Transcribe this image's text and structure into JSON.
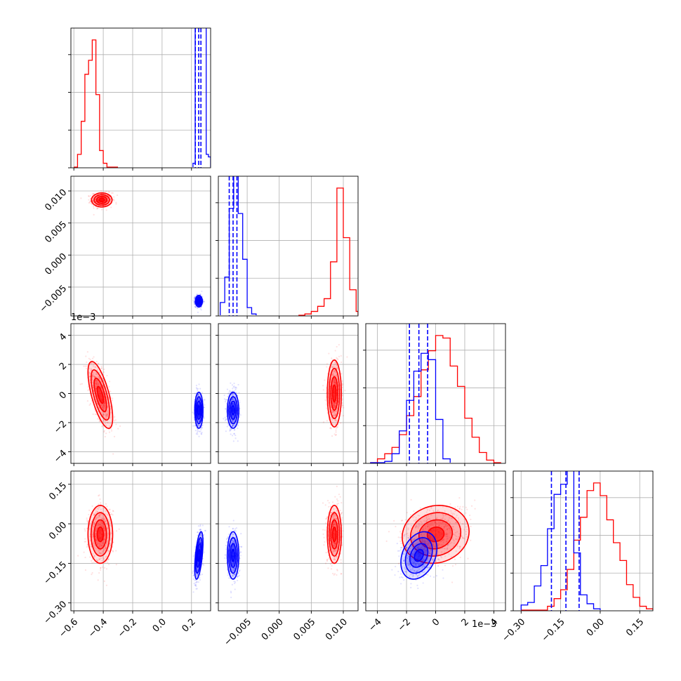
{
  "chart_data": {
    "type": "corner",
    "colors": {
      "red": "#ff0000",
      "blue": "#0000ff",
      "grid": "#b0b0b0"
    },
    "grid": true,
    "parameters": [
      {
        "index": 0,
        "range": [
          -0.62,
          0.33
        ],
        "ticks": [
          -0.6,
          -0.4,
          -0.2,
          0.0,
          0.2
        ],
        "tick_labels": [
          "−0.6",
          "−0.4",
          "−0.2",
          "0.0",
          "0.2"
        ],
        "offset_label": ""
      },
      {
        "index": 1,
        "range": [
          -0.0095,
          0.0123
        ],
        "ticks": [
          -0.005,
          0.0,
          0.005,
          0.01
        ],
        "tick_labels": [
          "−0.005",
          "0.000",
          "0.005",
          "0.010"
        ],
        "offset_label": ""
      },
      {
        "index": 2,
        "range": [
          -4.8,
          4.8
        ],
        "ticks": [
          -4,
          -2,
          0,
          2,
          4
        ],
        "tick_labels": [
          "−4",
          "−2",
          "0",
          "2",
          "4"
        ],
        "offset_label": "1e−3"
      },
      {
        "index": 3,
        "range": [
          -0.33,
          0.2
        ],
        "ticks": [
          -0.3,
          -0.15,
          0.0,
          0.15
        ],
        "tick_labels": [
          "−0.30",
          "−0.15",
          "0.00",
          "0.15"
        ],
        "offset_label": ""
      }
    ],
    "histograms": [
      {
        "param": 0,
        "red": {
          "edges": [
            -0.6,
            -0.575,
            -0.55,
            -0.525,
            -0.5,
            -0.475,
            -0.45,
            -0.425,
            -0.4,
            -0.375,
            -0.35,
            -0.325,
            -0.3
          ],
          "counts": [
            0,
            0.1,
            0.36,
            0.73,
            0.84,
            1.0,
            0.57,
            0.13,
            0.03,
            0,
            0,
            0
          ]
        },
        "blue": {
          "edges": [
            0.21,
            0.225,
            0.24,
            0.255,
            0.27,
            0.285,
            0.3,
            0.315,
            0.33
          ],
          "counts": [
            0.03,
            1.12,
            1.12,
            1.12,
            1.12,
            1.12,
            0.1,
            0.08
          ]
        },
        "quantiles": [
          0.226,
          0.249,
          0.264
        ]
      },
      {
        "param": 1,
        "red": {
          "edges": [
            0.003,
            0.004,
            0.005,
            0.006,
            0.007,
            0.008,
            0.009,
            0.01,
            0.011,
            0.012,
            0.0123
          ],
          "counts": [
            0.0,
            0.01,
            0.03,
            0.07,
            0.13,
            0.42,
            1.0,
            0.61,
            0.2,
            0.03
          ]
        },
        "blue": {
          "edges": [
            -0.0092,
            -0.0085,
            -0.0078,
            -0.0071,
            -0.0064,
            -0.0057,
            -0.005,
            -0.0043,
            -0.0036
          ],
          "counts": [
            0.1,
            0.3,
            0.84,
            1.1,
            0.8,
            0.44,
            0.06,
            0.01
          ]
        },
        "quantiles": [
          -0.0078,
          -0.0072,
          -0.0066
        ]
      },
      {
        "param": 2,
        "red": {
          "edges": [
            -4.5,
            -4.0,
            -3.5,
            -3.0,
            -2.5,
            -2.0,
            -1.5,
            -1.0,
            -0.5,
            0.0,
            0.5,
            1.0,
            1.5,
            2.0,
            2.5,
            3.0,
            3.5,
            4.0,
            4.5
          ],
          "counts": [
            0.0,
            0.03,
            0.07,
            0.12,
            0.22,
            0.37,
            0.52,
            0.73,
            0.88,
            1.0,
            0.98,
            0.76,
            0.6,
            0.35,
            0.2,
            0.08,
            0.02,
            0.0
          ]
        },
        "blue": {
          "edges": [
            -4.5,
            -4.0,
            -3.5,
            -3.0,
            -2.5,
            -2.0,
            -1.5,
            -1.0,
            -0.5,
            0.0,
            0.5,
            1.0
          ],
          "counts": [
            0.0,
            0.0,
            0.01,
            0.07,
            0.25,
            0.49,
            0.72,
            0.86,
            0.81,
            0.34,
            0.03
          ]
        },
        "quantiles": [
          -1.8,
          -1.15,
          -0.55
        ]
      },
      {
        "param": 3,
        "red": {
          "edges": [
            -0.3,
            -0.275,
            -0.25,
            -0.225,
            -0.2,
            -0.175,
            -0.15,
            -0.125,
            -0.1,
            -0.075,
            -0.05,
            -0.025,
            0.0,
            0.025,
            0.05,
            0.075,
            0.1,
            0.125,
            0.15,
            0.175,
            0.2
          ],
          "counts": [
            0.0,
            0.0,
            0.0,
            0.0,
            0.03,
            0.09,
            0.16,
            0.32,
            0.55,
            0.73,
            0.94,
            1.0,
            0.9,
            0.71,
            0.53,
            0.39,
            0.2,
            0.1,
            0.03,
            0.01
          ]
        },
        "blue": {
          "edges": [
            -0.3,
            -0.275,
            -0.25,
            -0.225,
            -0.2,
            -0.175,
            -0.15,
            -0.125,
            -0.1,
            -0.075,
            -0.05,
            -0.025,
            0.0
          ],
          "counts": [
            0.04,
            0.06,
            0.19,
            0.35,
            0.64,
            0.91,
            0.99,
            1.1,
            0.45,
            0.12,
            0.05,
            0.01
          ]
        },
        "quantiles": [
          -0.185,
          -0.13,
          -0.08
        ]
      }
    ],
    "pairs": [
      {
        "x": 1,
        "y": 0,
        "red": {
          "cx": -0.41,
          "cy": 0.0086,
          "sx": 0.035,
          "sy": 0.00055,
          "rho": 0.0
        },
        "blue": {
          "cx": 0.25,
          "cy": -0.0072,
          "sx": 0.012,
          "sy": 0.00045,
          "rho": 0.0
        }
      },
      {
        "x": 2,
        "y": 0,
        "red": {
          "cx": -0.42,
          "cy": -0.1,
          "sx": 0.042,
          "sy": 1.15,
          "rho": -0.68
        },
        "blue": {
          "cx": 0.25,
          "cy": -1.15,
          "sx": 0.014,
          "sy": 0.62,
          "rho": 0.0
        }
      },
      {
        "x": 2,
        "y": 1,
        "red": {
          "cx": 0.0086,
          "cy": 0.0,
          "sx": 0.00055,
          "sy": 1.15,
          "rho": 0.0
        },
        "blue": {
          "cx": -0.0072,
          "cy": -1.15,
          "sx": 0.00045,
          "sy": 0.62,
          "rho": 0.0
        }
      },
      {
        "x": 3,
        "y": 0,
        "red": {
          "cx": -0.42,
          "cy": -0.04,
          "sx": 0.042,
          "sy": 0.055,
          "rho": 0.0
        },
        "blue": {
          "cx": 0.25,
          "cy": -0.12,
          "sx": 0.014,
          "sy": 0.045,
          "rho": 0.55
        }
      },
      {
        "x": 3,
        "y": 1,
        "red": {
          "cx": 0.0086,
          "cy": -0.04,
          "sx": 0.00055,
          "sy": 0.055,
          "rho": 0.0
        },
        "blue": {
          "cx": -0.0072,
          "cy": -0.12,
          "sx": 0.00045,
          "sy": 0.045,
          "rho": 0.0
        }
      },
      {
        "x": 3,
        "y": 2,
        "red": {
          "cx": 0.0,
          "cy": -0.04,
          "sx": 1.15,
          "sy": 0.055,
          "rho": 0.1
        },
        "blue": {
          "cx": -1.15,
          "cy": -0.12,
          "sx": 0.62,
          "sy": 0.045,
          "rho": 0.3
        }
      }
    ]
  }
}
